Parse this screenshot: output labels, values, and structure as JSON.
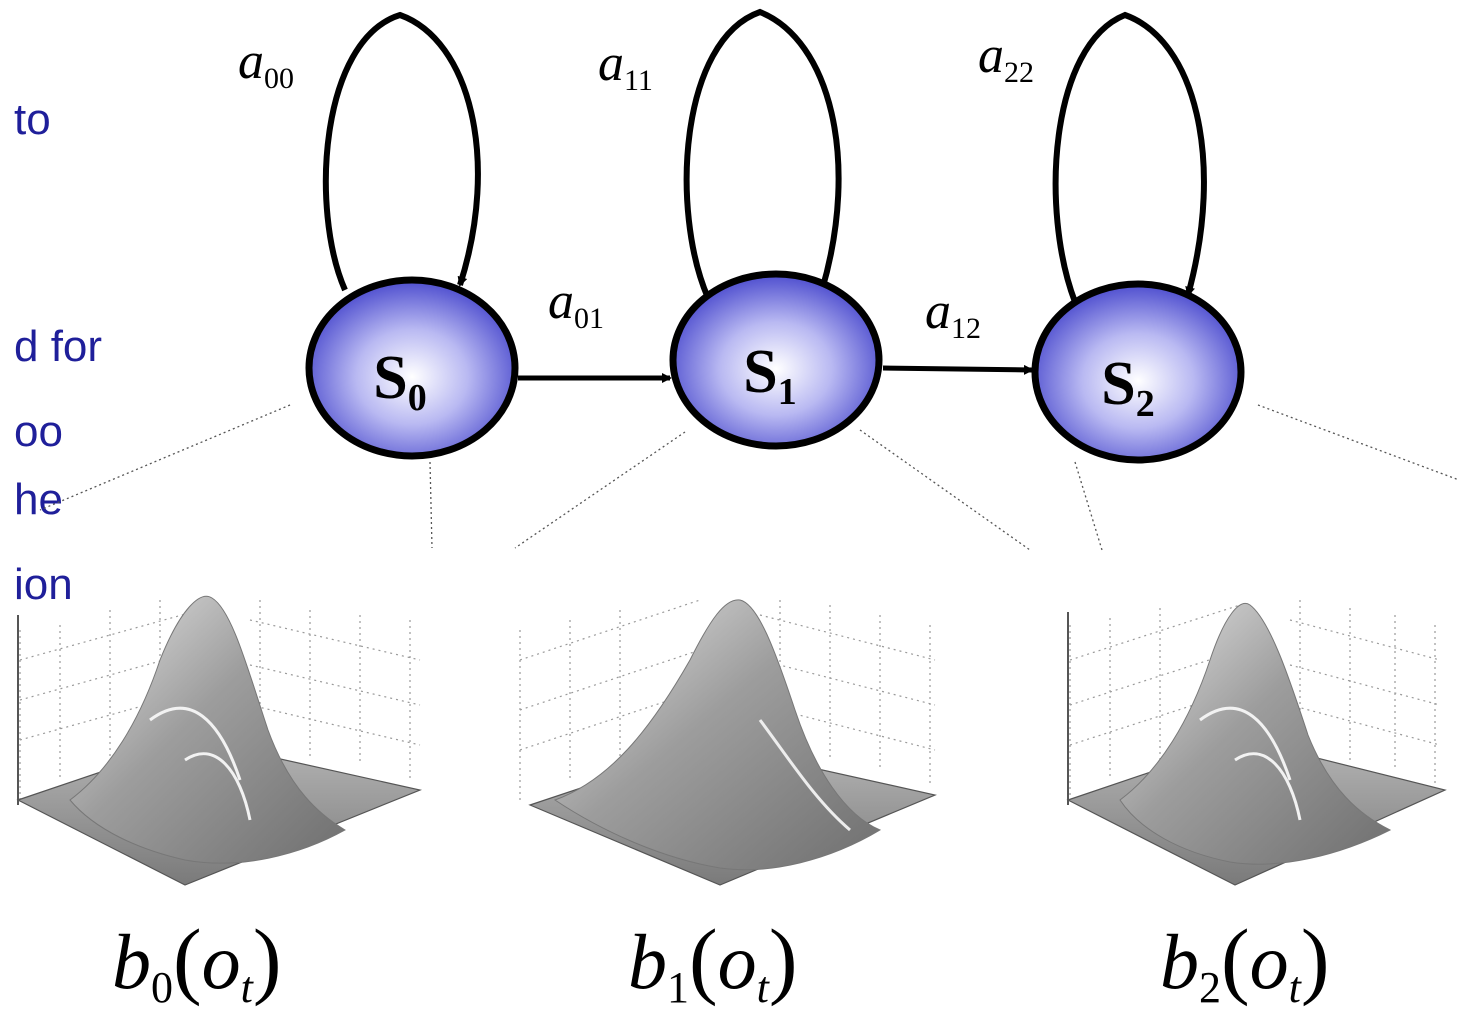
{
  "text_fragments": [
    "to",
    "d for",
    "oo",
    "he",
    "ion"
  ],
  "states": [
    {
      "label": "S",
      "sub": "0"
    },
    {
      "label": "S",
      "sub": "1"
    },
    {
      "label": "S",
      "sub": "2"
    }
  ],
  "self_loops": [
    {
      "label": "a",
      "sub": "00"
    },
    {
      "label": "a",
      "sub": "11"
    },
    {
      "label": "a",
      "sub": "22"
    }
  ],
  "transitions": [
    {
      "label": "a",
      "sub": "01"
    },
    {
      "label": "a",
      "sub": "12"
    }
  ],
  "emissions": [
    {
      "label": "b",
      "sub": "0",
      "arg": "o",
      "arg_sub": "t"
    },
    {
      "label": "b",
      "sub": "1",
      "arg": "o",
      "arg_sub": "t"
    },
    {
      "label": "b",
      "sub": "2",
      "arg": "o",
      "arg_sub": "t"
    }
  ],
  "colors": {
    "slide_text": "#1f1f9a",
    "state_fill_center": "#ffffff",
    "state_fill_edge": "#3b3bd0",
    "state_stroke": "#000000"
  }
}
